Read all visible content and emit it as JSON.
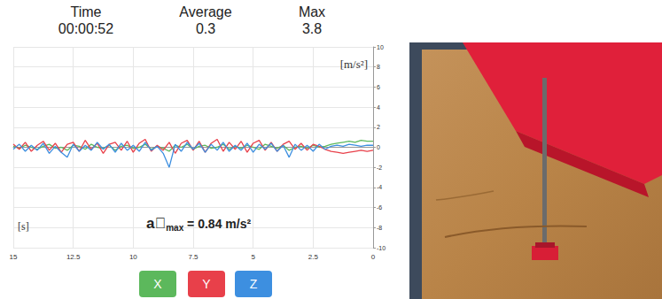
{
  "chart_data": {
    "type": "line",
    "stats": [
      {
        "label": "Time",
        "value": "00:00:52"
      },
      {
        "label": "Average",
        "value": 0.3
      },
      {
        "label": "Max",
        "value": 3.8
      }
    ],
    "y_label": "[m/s²]",
    "x_label": "[s]",
    "annotation": {
      "symbol": "a⃗",
      "subscript": "max",
      "text": " = 0.84 m/s²"
    },
    "x": [
      15,
      14.75,
      14.5,
      14.25,
      14,
      13.75,
      13.5,
      13.25,
      13,
      12.75,
      12.5,
      12.25,
      12,
      11.75,
      11.5,
      11.25,
      11,
      10.75,
      10.5,
      10.25,
      10,
      9.75,
      9.5,
      9.25,
      9,
      8.75,
      8.5,
      8.25,
      8,
      7.75,
      7.5,
      7.25,
      7,
      6.75,
      6.5,
      6.25,
      6,
      5.75,
      5.5,
      5.25,
      5,
      4.75,
      4.5,
      4.25,
      4,
      3.75,
      3.5,
      3.25,
      3,
      2.75,
      2.5,
      2.25,
      2,
      1.75,
      1.5,
      1.25,
      1,
      0.75,
      0.5,
      0.25,
      0
    ],
    "series": [
      {
        "name": "X",
        "color": "#5cb85c",
        "values": [
          0.1,
          -0.1,
          0.2,
          0.0,
          -0.2,
          0.1,
          0.3,
          -0.1,
          0.0,
          -0.3,
          0.2,
          0.1,
          -0.2,
          0.3,
          0.0,
          -0.1,
          0.2,
          -0.3,
          0.1,
          0.2,
          -0.1,
          0.0,
          0.3,
          -0.2,
          0.1,
          -0.1,
          -0.4,
          0.2,
          0.0,
          0.3,
          -0.2,
          0.1,
          0.2,
          -0.1,
          0.0,
          0.3,
          -0.2,
          0.1,
          -0.1,
          0.2,
          0.0,
          -0.2,
          0.3,
          0.1,
          -0.1,
          0.2,
          -0.3,
          0.0,
          0.1,
          -0.1,
          0.2,
          0.0,
          0.1,
          0.3,
          0.4,
          0.5,
          0.6,
          0.5,
          0.7,
          0.6,
          0.6
        ]
      },
      {
        "name": "Y",
        "color": "#e8404a",
        "values": [
          0.3,
          -0.2,
          0.5,
          -0.4,
          0.2,
          0.6,
          -0.3,
          0.4,
          -0.5,
          0.3,
          0.5,
          -0.4,
          0.7,
          -0.2,
          0.4,
          -0.6,
          0.3,
          0.5,
          -0.3,
          0.6,
          -0.5,
          0.4,
          0.8,
          -0.4,
          0.2,
          -0.3,
          0.5,
          -0.6,
          0.4,
          0.7,
          -0.3,
          0.6,
          -0.5,
          0.4,
          0.8,
          -0.4,
          0.5,
          -0.2,
          0.6,
          -0.5,
          0.4,
          0.7,
          -0.3,
          0.5,
          -0.4,
          0.3,
          0.6,
          -0.2,
          0.4,
          -0.3,
          0.3,
          0.1,
          -0.2,
          -0.4,
          -0.5,
          -0.6,
          -0.5,
          -0.4,
          -0.3,
          -0.4,
          -0.3
        ]
      },
      {
        "name": "Z",
        "color": "#3d8fe0",
        "values": [
          -0.2,
          0.3,
          -0.4,
          0.2,
          -0.3,
          0.4,
          -0.6,
          0.1,
          -0.5,
          -1.0,
          0.3,
          -0.4,
          0.2,
          -0.3,
          0.5,
          -0.2,
          0.3,
          -0.5,
          0.4,
          -0.3,
          0.2,
          -0.4,
          0.5,
          -0.3,
          0.1,
          -0.6,
          -2.0,
          0.3,
          -0.4,
          0.5,
          -0.2,
          0.4,
          -0.5,
          0.3,
          -0.3,
          0.5,
          -0.4,
          0.2,
          -0.3,
          0.4,
          -0.5,
          0.3,
          -0.2,
          0.4,
          -0.4,
          0.2,
          -1.0,
          0.3,
          -0.3,
          0.2,
          -0.4,
          0.3,
          -0.2,
          0.1,
          0.2,
          0.1,
          0.3,
          0.2,
          0.1,
          0.2,
          0.2
        ]
      }
    ],
    "xlim": [
      15,
      0
    ],
    "xticks": [
      15,
      12.5,
      10,
      7.5,
      5,
      2.5,
      0
    ],
    "ylim": [
      -10,
      10
    ],
    "yticks": [
      -10,
      -8,
      -6,
      -4,
      -2,
      0,
      2,
      4,
      6,
      8,
      10
    ],
    "grid": true,
    "legend": "bottom"
  }
}
